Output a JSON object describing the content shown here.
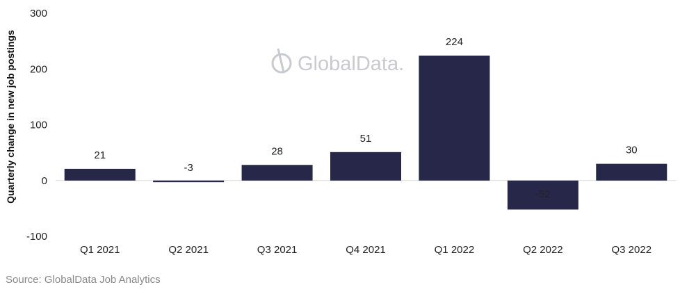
{
  "source": "Source: GlobalData Job Analytics",
  "watermark": "GlobalData.",
  "colors": {
    "bar": "#272849",
    "axis": "#d9d9d9",
    "watermark": "#c9c9d1"
  },
  "chart_data": {
    "type": "bar",
    "ylabel": "Quarterly change in new job postings",
    "ylim": [
      -100,
      300
    ],
    "yticks": [
      -100,
      0,
      100,
      200,
      300
    ],
    "grid": false,
    "categories": [
      "Q1 2021",
      "Q2 2021",
      "Q3 2021",
      "Q4 2021",
      "Q1 2022",
      "Q2 2022",
      "Q3 2022"
    ],
    "values": [
      21,
      -3,
      28,
      51,
      224,
      -52,
      30
    ]
  }
}
